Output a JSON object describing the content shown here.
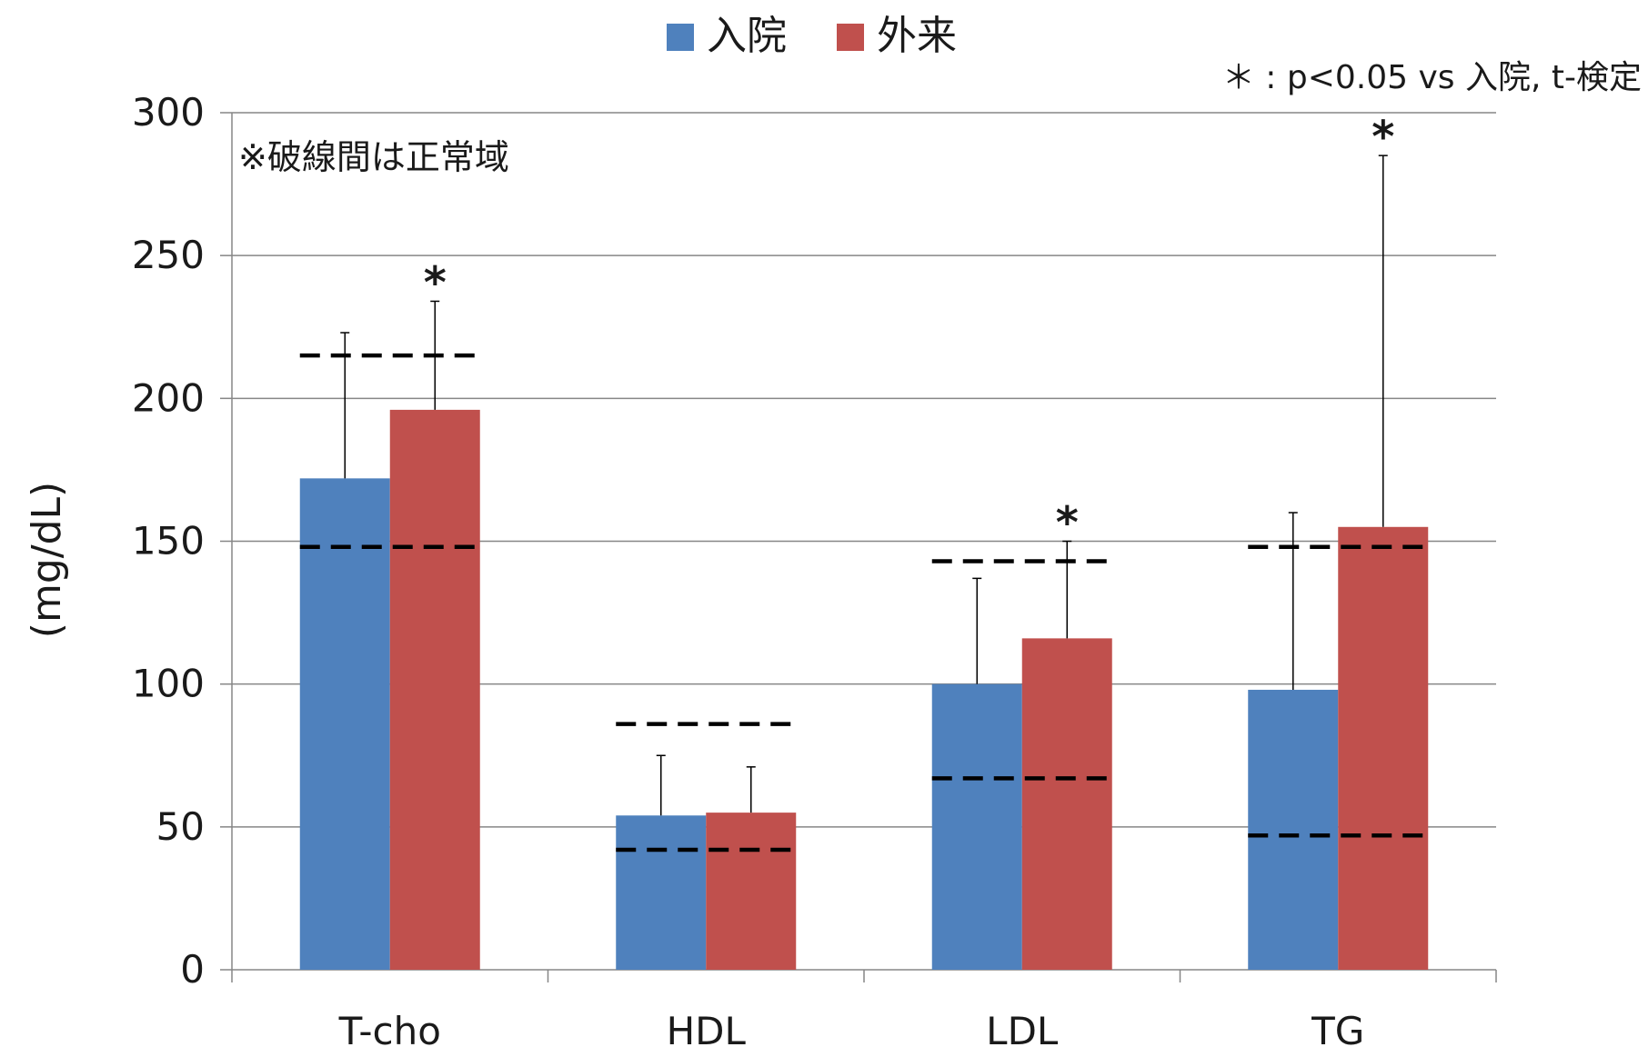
{
  "chart_data": {
    "type": "bar",
    "categories": [
      "T-cho",
      "HDL",
      "LDL",
      "TG"
    ],
    "series": [
      {
        "name": "入院",
        "color": "#4F81BD",
        "values": [
          172,
          54,
          100,
          98
        ],
        "error_plus": [
          51,
          21,
          37,
          62
        ]
      },
      {
        "name": "外来",
        "color": "#C0504D",
        "values": [
          196,
          55,
          116,
          155
        ],
        "error_plus": [
          38,
          16,
          34,
          130
        ]
      }
    ],
    "ylabel": "(mg/dL)",
    "ylim": [
      0,
      300
    ],
    "yticks": [
      0,
      50,
      100,
      150,
      200,
      250,
      300
    ],
    "ytick_labels": [
      "0",
      "50",
      "100",
      "150",
      "200",
      "250",
      "300"
    ],
    "grid": true,
    "legend_position": "top",
    "normal_ranges": [
      {
        "category": "T-cho",
        "low": 148,
        "high": 215
      },
      {
        "category": "HDL",
        "low": 42,
        "high": 86
      },
      {
        "category": "LDL",
        "low": 67,
        "high": 143
      },
      {
        "category": "TG",
        "low": 47,
        "high": 148
      }
    ],
    "significance_marks": [
      {
        "category": "T-cho",
        "series": "外来",
        "label": "*"
      },
      {
        "category": "LDL",
        "series": "外来",
        "label": "*"
      },
      {
        "category": "TG",
        "series": "外来",
        "label": "*"
      }
    ],
    "annotations": {
      "normal_range_note": "※破線間は正常域",
      "significance_note": "＊ : p<0.05 vs 入院,  t-検定"
    }
  },
  "colors": {
    "axis": "#868686",
    "grid": "#868686",
    "dash": "#000000",
    "error_bar": "#000000"
  }
}
